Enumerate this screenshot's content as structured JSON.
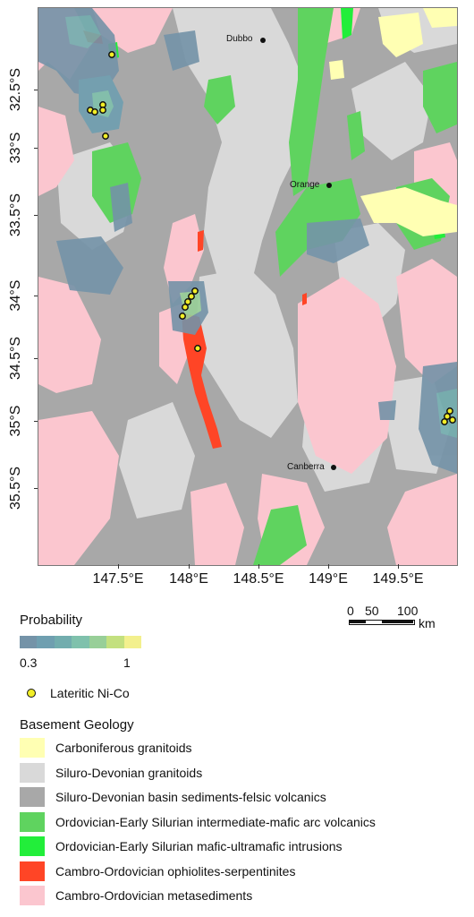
{
  "map": {
    "lat_ticks": [
      "32.5°S",
      "33°S",
      "33.5°S",
      "34°S",
      "34.5°S",
      "35°S",
      "35.5°S"
    ],
    "lon_ticks": [
      "147.5°E",
      "148°E",
      "148.5°E",
      "149°E",
      "149.5°E"
    ],
    "cities": [
      {
        "name": "Dubbo"
      },
      {
        "name": "Orange"
      },
      {
        "name": "Canberra"
      }
    ]
  },
  "scale_bar": {
    "ticks": [
      "0",
      "50",
      "100"
    ],
    "unit": "km"
  },
  "legend": {
    "probability_title": "Probability",
    "probability_min": "0.3",
    "probability_max": "1",
    "probability_colors": [
      "#7493a8",
      "#6f9fb0",
      "#72adae",
      "#7fc1ac",
      "#98cf98",
      "#c3e07f",
      "#f3f08d"
    ],
    "point_label": "Lateritic Ni-Co",
    "point_color": "#f2ee27",
    "geology_title": "Basement Geology",
    "geology_items": [
      {
        "label": "Carboniferous granitoids",
        "color": "#ffffb3"
      },
      {
        "label": "Siluro-Devonian granitoids",
        "color": "#d9d9d9"
      },
      {
        "label": "Siluro-Devonian basin sediments-felsic volcanics",
        "color": "#a8a8a8"
      },
      {
        "label": "Ordovician-Early Silurian intermediate-mafic arc volcanics",
        "color": "#5fd35f"
      },
      {
        "label": "Ordovician-Early Silurian mafic-ultramafic intrusions",
        "color": "#22ee3a"
      },
      {
        "label": "Cambro-Ordovician ophiolites-serpentinites",
        "color": "#ff4526"
      },
      {
        "label": "Cambro-Ordovician metasediments",
        "color": "#fbc6cf"
      }
    ]
  }
}
